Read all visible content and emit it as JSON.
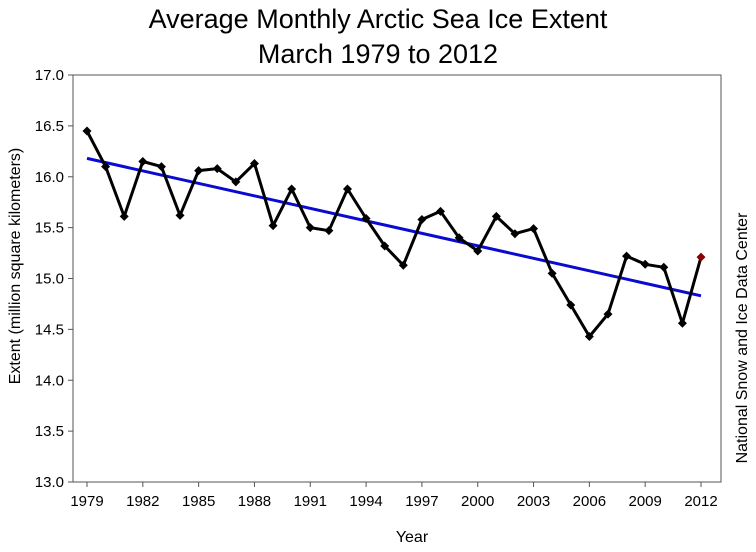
{
  "chart_data": {
    "type": "line",
    "title": "Average Monthly Arctic Sea Ice Extent",
    "subtitle": "March 1979 to 2012",
    "xlabel": "Year",
    "ylabel": "Extent (million square kilometers)",
    "side_label": "National  Snow and Ice Data Center",
    "xlim": [
      1979,
      2012
    ],
    "ylim": [
      13.0,
      17.0
    ],
    "y_ticks": [
      "13.0",
      "13.5",
      "14.0",
      "14.5",
      "15.0",
      "15.5",
      "16.0",
      "16.5",
      "17.0"
    ],
    "x_ticks": [
      "1979",
      "1982",
      "1985",
      "1988",
      "1991",
      "1994",
      "1997",
      "2000",
      "2003",
      "2006",
      "2009",
      "2012"
    ],
    "grid": false,
    "legend": "none",
    "series": [
      {
        "color": "#000000",
        "x": [
          1979,
          1980,
          1981,
          1982,
          1983,
          1984,
          1985,
          1986,
          1987,
          1988,
          1989,
          1990,
          1991,
          1992,
          1993,
          1994,
          1995,
          1996,
          1997,
          1998,
          1999,
          2000,
          2001,
          2002,
          2003,
          2004,
          2005,
          2006,
          2007,
          2008,
          2009,
          2010,
          2011,
          2012
        ],
        "y": [
          16.45,
          16.1,
          15.61,
          16.15,
          16.1,
          15.62,
          16.06,
          16.08,
          15.95,
          16.13,
          15.52,
          15.88,
          15.5,
          15.47,
          15.88,
          15.59,
          15.32,
          15.13,
          15.58,
          15.66,
          15.4,
          15.27,
          15.61,
          15.44,
          15.49,
          15.05,
          14.74,
          14.43,
          14.65,
          15.22,
          15.14,
          15.11,
          14.56,
          15.21
        ]
      },
      {
        "color": "#0a0ad0",
        "x": [
          1979,
          2012
        ],
        "y": [
          16.18,
          14.83
        ]
      }
    ],
    "highlight_point": {
      "x": 2012,
      "y": 15.21,
      "color": "#8b0000"
    }
  }
}
